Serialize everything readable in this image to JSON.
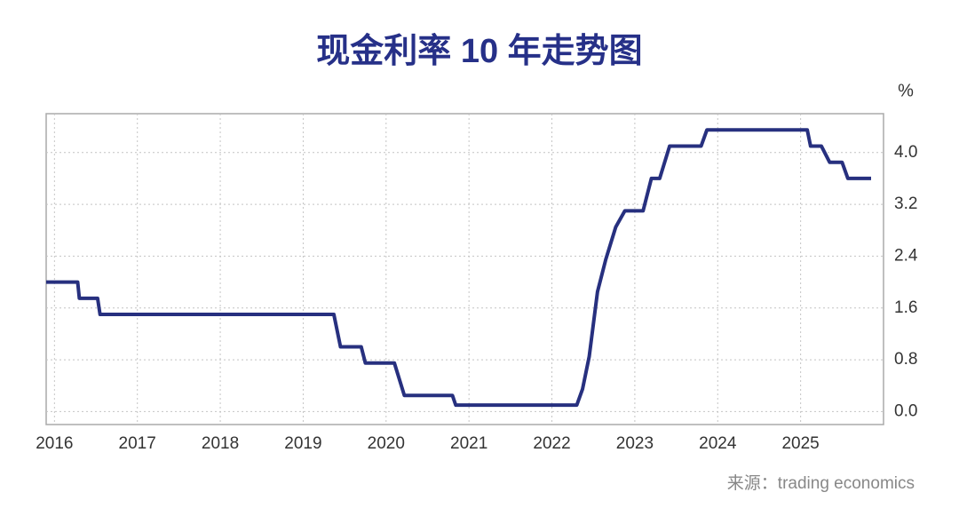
{
  "chart_data": {
    "type": "line",
    "title": "现金利率 10 年走势图",
    "y_label": "%",
    "source": "来源：trading economics",
    "xlim": [
      2015.9,
      2026
    ],
    "xticks": [
      2016,
      2017,
      2018,
      2019,
      2020,
      2021,
      2022,
      2023,
      2024,
      2025
    ],
    "ylim": [
      -0.2,
      4.6
    ],
    "yticks": [
      {
        "value": 0,
        "label": "0.0"
      },
      0.8,
      1.6,
      2.4,
      3.2,
      {
        "value": 4,
        "label": "4.0"
      }
    ],
    "grid": true,
    "series": [
      {
        "color": "#27307f",
        "x": [
          2015.9,
          2016.28,
          2016.3,
          2016.52,
          2016.55,
          2019.37,
          2019.45,
          2019.7,
          2019.75,
          2020.1,
          2020.22,
          2020.8,
          2020.84,
          2022.3,
          2022.37,
          2022.45,
          2022.55,
          2022.65,
          2022.77,
          2022.88,
          2023.1,
          2023.15,
          2023.2,
          2023.3,
          2023.42,
          2023.8,
          2023.87,
          2025.08,
          2025.12,
          2025.25,
          2025.35,
          2025.5,
          2025.57,
          2025.85
        ],
        "values": [
          2.0,
          2.0,
          1.75,
          1.75,
          1.5,
          1.5,
          1.0,
          1.0,
          0.75,
          0.75,
          0.25,
          0.25,
          0.1,
          0.1,
          0.35,
          0.85,
          1.85,
          2.35,
          2.85,
          3.1,
          3.1,
          3.35,
          3.6,
          3.6,
          4.1,
          4.1,
          4.35,
          4.35,
          4.1,
          4.1,
          3.85,
          3.85,
          3.6,
          3.6
        ]
      }
    ]
  }
}
